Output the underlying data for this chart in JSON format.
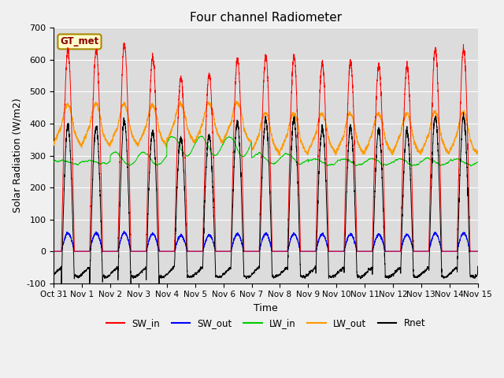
{
  "title": "Four channel Radiometer",
  "xlabel": "Time",
  "ylabel": "Solar Radiation (W/m2)",
  "ylim": [
    -100,
    700
  ],
  "yticks": [
    -100,
    0,
    100,
    200,
    300,
    400,
    500,
    600,
    700
  ],
  "x_labels": [
    "Oct 31",
    "Nov 1",
    "Nov 2",
    "Nov 3",
    "Nov 4",
    "Nov 5",
    "Nov 6",
    "Nov 7",
    "Nov 8",
    "Nov 9",
    "Nov 10",
    "Nov 11",
    "Nov 12",
    "Nov 13",
    "Nov 14",
    "Nov 15"
  ],
  "legend_labels": [
    "SW_in",
    "SW_out",
    "LW_in",
    "LW_out",
    "Rnet"
  ],
  "legend_colors": [
    "#ff0000",
    "#0000ff",
    "#00cc00",
    "#ff9900",
    "#000000"
  ],
  "annotation_text": "GT_met",
  "annotation_color": "#8b0000",
  "plot_bg": "#dcdcdc",
  "fig_bg": "#f0f0f0",
  "grid_color": "#ffffff",
  "sw_in_peaks": [
    630,
    630,
    648,
    610,
    543,
    555,
    600,
    610,
    608,
    590,
    590,
    580,
    580,
    635,
    635
  ],
  "lw_in_base": 285,
  "lw_out_base": 360,
  "colors": {
    "SW_in": "#ff0000",
    "SW_out": "#0000ff",
    "LW_in": "#00cc00",
    "LW_out": "#ff9900",
    "Rnet": "#000000"
  },
  "figsize": [
    6.4,
    4.8
  ],
  "dpi": 100
}
